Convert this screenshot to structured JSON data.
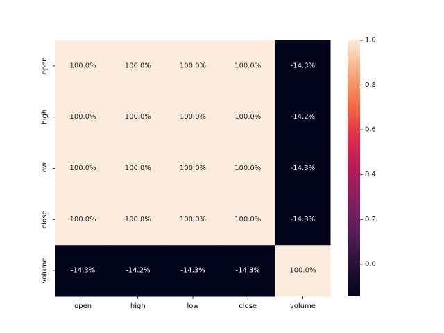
{
  "chart_data": {
    "type": "heatmap",
    "title": "",
    "xlabel": "",
    "ylabel": "",
    "x_categories": [
      "open",
      "high",
      "low",
      "close",
      "volume"
    ],
    "y_categories": [
      "open",
      "high",
      "low",
      "close",
      "volume"
    ],
    "values": [
      [
        1.0,
        1.0,
        1.0,
        1.0,
        -0.143
      ],
      [
        1.0,
        1.0,
        1.0,
        1.0,
        -0.142
      ],
      [
        1.0,
        1.0,
        1.0,
        1.0,
        -0.143
      ],
      [
        1.0,
        1.0,
        1.0,
        1.0,
        -0.143
      ],
      [
        -0.143,
        -0.142,
        -0.143,
        -0.143,
        1.0
      ]
    ],
    "labels": [
      [
        "100.0%",
        "100.0%",
        "100.0%",
        "100.0%",
        "-14.3%"
      ],
      [
        "100.0%",
        "100.0%",
        "100.0%",
        "100.0%",
        "-14.2%"
      ],
      [
        "100.0%",
        "100.0%",
        "100.0%",
        "100.0%",
        "-14.3%"
      ],
      [
        "100.0%",
        "100.0%",
        "100.0%",
        "100.0%",
        "-14.3%"
      ],
      [
        "-14.3%",
        "-14.2%",
        "-14.3%",
        "-14.3%",
        "100.0%"
      ]
    ],
    "colorbar": {
      "min": -0.143,
      "max": 1.0,
      "ticks": [
        "0.0",
        "0.2",
        "0.4",
        "0.6",
        "0.8",
        "1.0"
      ],
      "tick_values": [
        0.0,
        0.2,
        0.4,
        0.6,
        0.8,
        1.0
      ],
      "colormap": "rocket"
    },
    "colors": {
      "low": "#03051a",
      "high": "#faebdd"
    }
  }
}
